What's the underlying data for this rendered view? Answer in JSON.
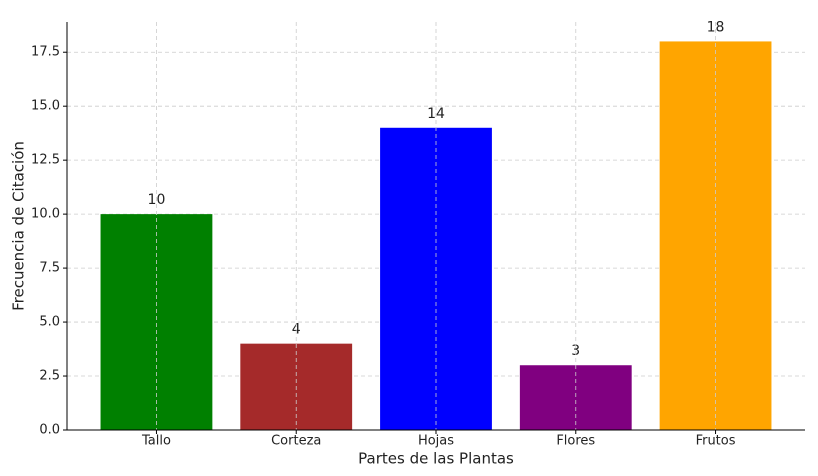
{
  "chart_data": {
    "type": "bar",
    "x_label": "Partes de las Plantas",
    "y_label": "Frecuencia de Citación",
    "categories": [
      "Tallo",
      "Corteza",
      "Hojas",
      "Flores",
      "Frutos"
    ],
    "values": [
      10,
      4,
      14,
      3,
      18
    ],
    "colors": [
      "#008000",
      "#a52a2a",
      "#0000ff",
      "#800080",
      "#ffa500"
    ],
    "ylim": [
      0,
      18.9
    ],
    "yticks": [
      {
        "value": 0,
        "label": "0.0"
      },
      {
        "value": 2.5,
        "label": "2.5"
      },
      {
        "value": 5,
        "label": "5.0"
      },
      {
        "value": 7.5,
        "label": "7.5"
      },
      {
        "value": 10,
        "label": "10.0"
      },
      {
        "value": 12.5,
        "label": "12.5"
      },
      {
        "value": 15,
        "label": "15.0"
      },
      {
        "value": 17.5,
        "label": "17.5"
      }
    ],
    "grid": true
  }
}
